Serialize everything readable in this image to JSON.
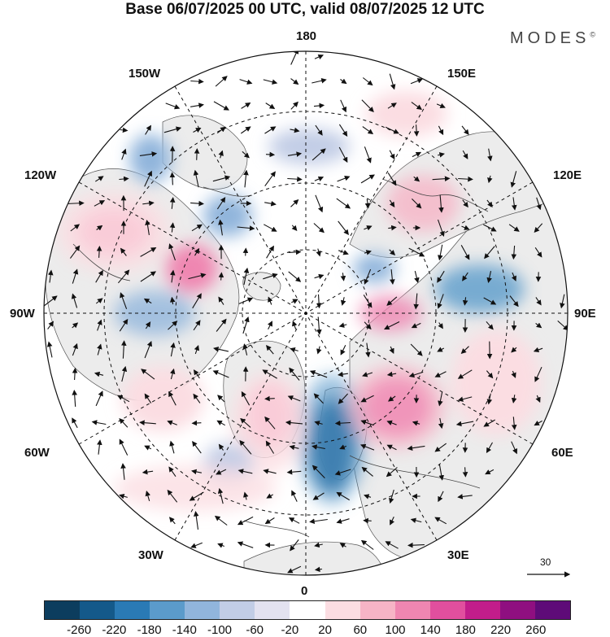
{
  "title": "Base 06/07/2025 00 UTC, valid 08/07/2025 12 UTC",
  "brand": "MODES",
  "brand_mark": "©",
  "lon_labels": {
    "top": "180",
    "bottom": "0",
    "left": "90W",
    "right": "90E",
    "upper_left_1": "150W",
    "upper_left_2": "120W",
    "upper_right_1": "150E",
    "upper_right_2": "120E",
    "lower_left_1": "60W",
    "lower_left_2": "30W",
    "lower_right_1": "60E",
    "lower_right_2": "30E"
  },
  "reference_vector": {
    "value": "30"
  },
  "colorbar": {
    "colors": [
      "#0c3d5e",
      "#14598a",
      "#2a7ab5",
      "#5b9bcb",
      "#91b5dc",
      "#c2cde6",
      "#e3e2f0",
      "#ffffff",
      "#fbdde2",
      "#f6b4c6",
      "#ef86b1",
      "#e14f9e",
      "#c21d8b",
      "#8f0f80",
      "#5e0b78"
    ],
    "labels": [
      "-260",
      "-220",
      "-180",
      "-140",
      "-100",
      "-60",
      "-20",
      "20",
      "60",
      "100",
      "140",
      "180",
      "220",
      "260"
    ]
  },
  "colors": {
    "land": "#ececec",
    "ocean": "#ffffff",
    "grid": "#111111"
  }
}
